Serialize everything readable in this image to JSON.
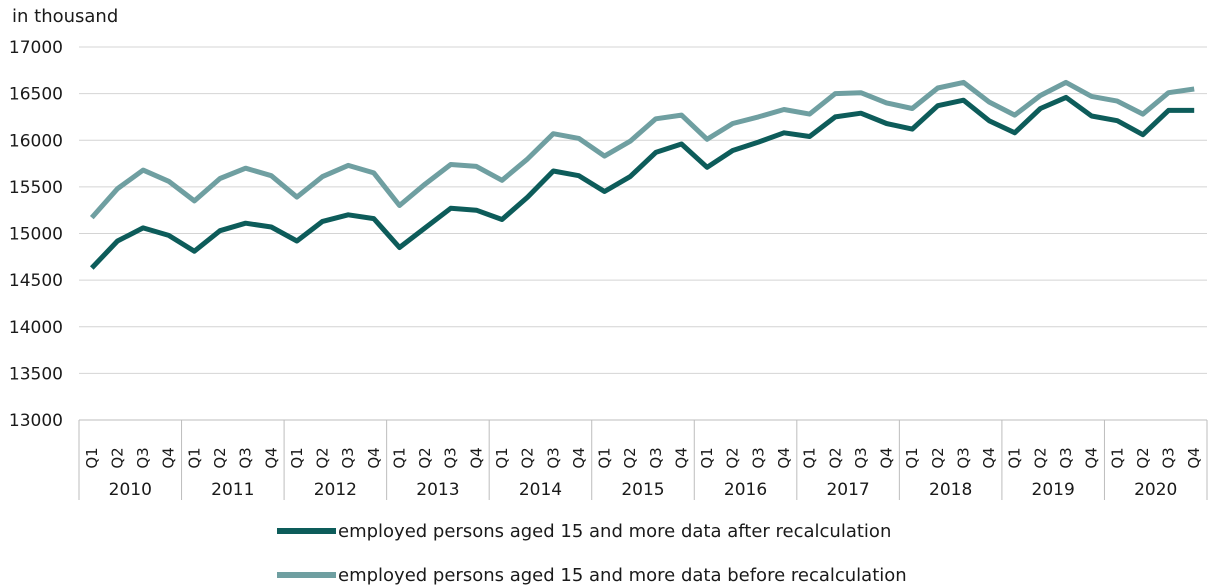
{
  "chart_data": {
    "type": "line",
    "ylabel": "in thousand",
    "ylim": [
      13000,
      17000
    ],
    "yticks": [
      13000,
      13500,
      14000,
      14500,
      15000,
      15500,
      16000,
      16500,
      17000
    ],
    "grid": "horizontal",
    "legend_position": "bottom",
    "quarters": [
      "Q1",
      "Q2",
      "Q3",
      "Q4"
    ],
    "years": [
      "2010",
      "2011",
      "2012",
      "2013",
      "2014",
      "2015",
      "2016",
      "2017",
      "2018",
      "2019",
      "2020"
    ],
    "series": [
      {
        "name": "employed persons aged 15 and more data after recalculation",
        "color": "#0d5c5a",
        "values": [
          14630,
          14920,
          15060,
          14980,
          14810,
          15030,
          15110,
          15070,
          14920,
          15130,
          15200,
          15160,
          14850,
          15060,
          15270,
          15250,
          15150,
          15390,
          15670,
          15620,
          15450,
          15610,
          15870,
          15960,
          15710,
          15890,
          15980,
          16080,
          16040,
          16250,
          16290,
          16180,
          16120,
          16370,
          16430,
          16210,
          16080,
          16340,
          16460,
          16260,
          16210,
          16060,
          16320,
          16320
        ]
      },
      {
        "name": "employed persons aged 15 and more data before recalculation",
        "color": "#6f9fa1",
        "values": [
          15170,
          15480,
          15680,
          15560,
          15350,
          15590,
          15700,
          15620,
          15390,
          15610,
          15730,
          15650,
          15300,
          15530,
          15740,
          15720,
          15570,
          15800,
          16070,
          16020,
          15830,
          15990,
          16230,
          16270,
          16010,
          16180,
          16250,
          16330,
          16280,
          16500,
          16510,
          16400,
          16340,
          16560,
          16620,
          16410,
          16270,
          16480,
          16620,
          16470,
          16420,
          16280,
          16510,
          16550
        ]
      }
    ]
  }
}
